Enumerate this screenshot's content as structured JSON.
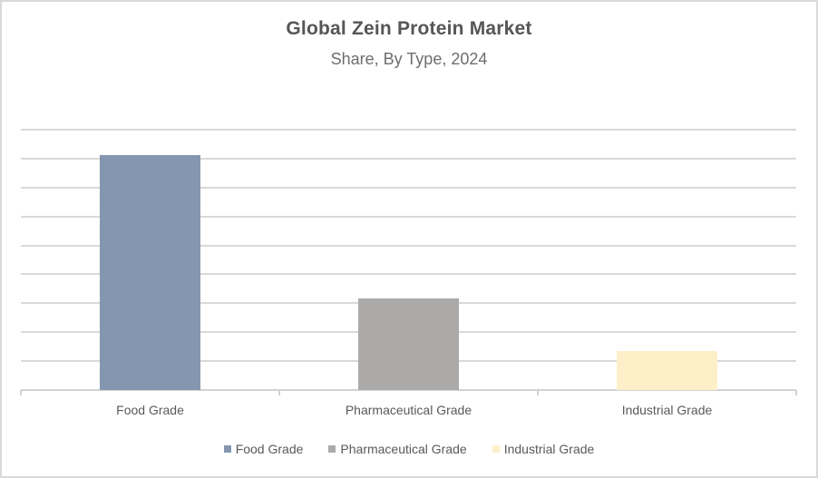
{
  "chart_data": {
    "type": "bar",
    "title": "Global Zein Protein Market",
    "subtitle": "Share, By Type, 2024",
    "categories": [
      "Food Grade",
      "Pharmaceutical Grade",
      "Industrial Grade"
    ],
    "values": [
      40.6,
      15.8,
      6.8
    ],
    "ylim": [
      0,
      45
    ],
    "gridline_step": 5,
    "y_axis_labels_visible": false,
    "grid": true,
    "legend_position": "bottom",
    "legend": [
      {
        "label": "Food Grade",
        "color": "#8496B0"
      },
      {
        "label": "Pharmaceutical Grade",
        "color": "#ACA9A9"
      },
      {
        "label": "Industrial Grade",
        "color": "#FDF0C9"
      }
    ],
    "colors": {
      "grid": "#D9D9D9",
      "axis": "#D2D2D2",
      "title_text": "#565656",
      "subtitle_text": "#6E6E6E",
      "label_text": "#595959",
      "background": "#FFFFFF",
      "frame_border": "#D9D9D9"
    }
  }
}
